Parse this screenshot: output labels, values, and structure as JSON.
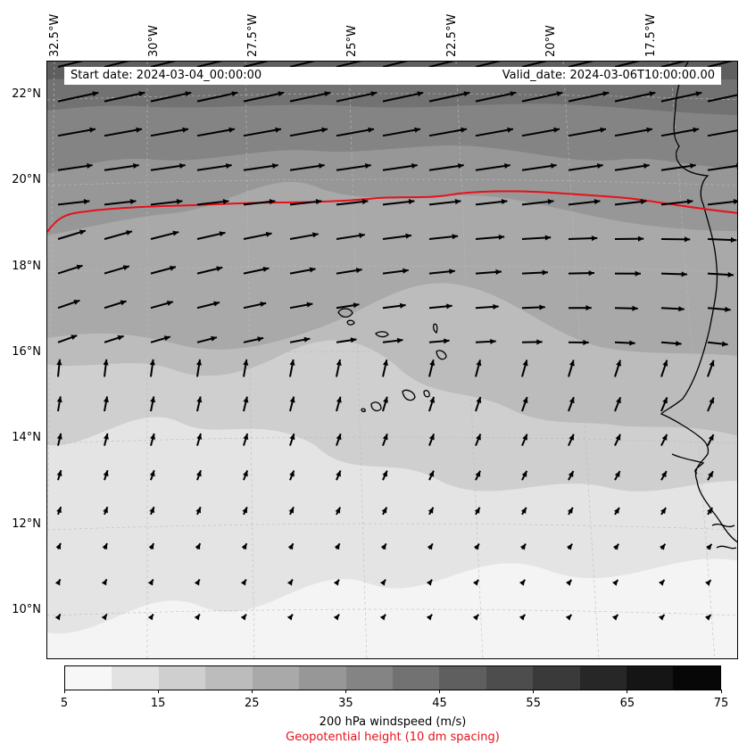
{
  "map": {
    "longitude_labels": [
      "32.5°W",
      "30°W",
      "27.5°W",
      "25°W",
      "22.5°W",
      "20°W",
      "17.5°W"
    ],
    "latitude_labels": [
      "22°N",
      "20°N",
      "18°N",
      "16°N",
      "14°N",
      "12°N",
      "10°N"
    ],
    "start_date_label": "Start date: 2024-03-04_00:00:00",
    "valid_date_label": "Valid_date: 2024-03-06T10:00:00.00",
    "contour_color": "#e8111a",
    "coastline_color": "#000000",
    "gridline_color": "#bbbbbb",
    "arrow_color": "#000000"
  },
  "colorbar": {
    "colors": [
      "#f7f7f7",
      "#e2e2e2",
      "#cfcfcf",
      "#bcbcbc",
      "#a9a9a9",
      "#979797",
      "#848484",
      "#727272",
      "#5f5f5f",
      "#4d4d4d",
      "#3a3a3a",
      "#272727",
      "#151515",
      "#070707"
    ],
    "ticks": [
      "5",
      "15",
      "25",
      "35",
      "45",
      "55",
      "65",
      "75"
    ],
    "label": "200 hPa windspeed (m/s)",
    "contour_label": "Geopotential height (10 dm spacing)"
  }
}
